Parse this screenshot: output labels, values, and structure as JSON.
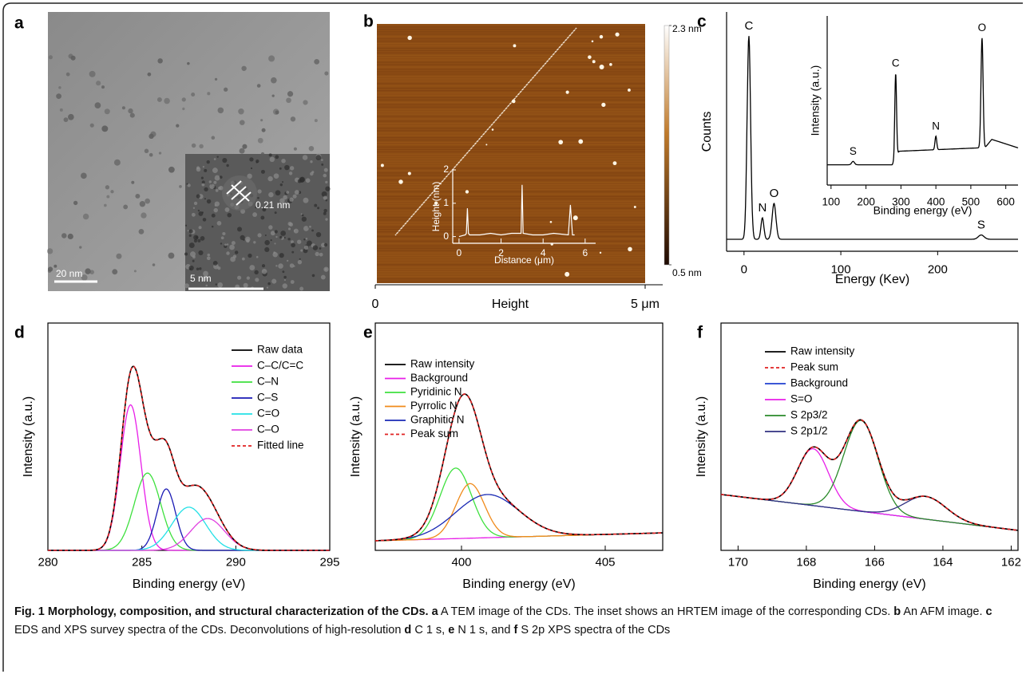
{
  "panels": {
    "a": {
      "label": "a",
      "scale_bar": "20 nm",
      "inset_scale_bar": "5 nm",
      "lattice_spacing": "0.21 nm"
    },
    "b": {
      "label": "b",
      "colorbar_lim": [
        0.5,
        2.3
      ],
      "colorbar_ticks": [
        {
          "value": 2.3,
          "label": "2.3 nm"
        },
        {
          "value": 0.5,
          "label": "0.5 nm"
        }
      ],
      "x_label": "Height",
      "xlim": [
        0,
        5
      ],
      "xticks": [
        0,
        {
          "value": 5,
          "label": "5 μm"
        }
      ],
      "inset": {
        "type": "line",
        "x_label": "Distance (μm)",
        "y_label": "Height (nm)",
        "color": "#ffffff",
        "xlim": [
          -0.3,
          6.5
        ],
        "xticks": [
          0,
          2,
          4,
          6
        ],
        "ylim": [
          -0.2,
          2
        ],
        "yticks": [
          0,
          1,
          2
        ],
        "x": [
          0,
          0.3,
          0.35,
          0.4,
          0.45,
          0.5,
          1,
          1.5,
          2,
          2.5,
          2.95,
          3.0,
          3.05,
          3.5,
          4,
          4.5,
          5.2,
          5.3,
          5.4,
          5.5
        ],
        "values": [
          0,
          0.05,
          0.1,
          0.85,
          0.1,
          0.05,
          0.05,
          0.1,
          0.05,
          0.1,
          0.1,
          1.55,
          0.1,
          0.05,
          0.05,
          0.1,
          0.05,
          0.95,
          0.05,
          0.05
        ]
      }
    },
    "c": {
      "label": "c",
      "type": "spectrum",
      "x_label": "Energy (Kev)",
      "y_label": "Counts",
      "color": "#000000",
      "xlim": [
        -18,
        283
      ],
      "xticks": [
        0,
        100,
        200
      ],
      "ylim": [
        0,
        100
      ],
      "background": {
        "x": [
          -18,
          283
        ],
        "values": [
          5,
          5
        ]
      },
      "peaks": [
        {
          "name": "C",
          "center": 5,
          "height": 85,
          "width": 1.8
        },
        {
          "name": "N",
          "center": 19,
          "height": 9,
          "width": 1.5
        },
        {
          "name": "O",
          "center": 31,
          "height": 15,
          "width": 2
        },
        {
          "name": "S",
          "center": 245,
          "height": 1.8,
          "width": 3
        }
      ],
      "inset": {
        "type": "spectrum",
        "x_label": "Binding energy (eV)",
        "y_label": "Intensity (a.u.)",
        "color": "#000000",
        "xlim": [
          89,
          635
        ],
        "xticks": [
          100,
          200,
          300,
          400,
          500,
          600
        ],
        "ylim": [
          0,
          100
        ],
        "background": {
          "x": [
            89,
            275,
            295,
            525,
            540,
            560,
            635
          ],
          "values": [
            12,
            12,
            20,
            22,
            22,
            27,
            22
          ]
        },
        "peaks": [
          {
            "name": "S",
            "center": 163,
            "height": 2,
            "width": 4
          },
          {
            "name": "C",
            "center": 285,
            "height": 50,
            "width": 2.5
          },
          {
            "name": "N",
            "center": 400,
            "height": 8,
            "width": 2.5
          },
          {
            "name": "O",
            "center": 532,
            "height": 65,
            "width": 3
          }
        ]
      }
    },
    "d": {
      "label": "d",
      "type": "spectrum",
      "x_label": "Binding energy (eV)",
      "y_label": "Intensity (a.u.)",
      "xlim": [
        280,
        295
      ],
      "xticks": [
        280,
        285,
        290,
        295
      ],
      "ylim": [
        0,
        100
      ],
      "series": [
        {
          "name": "Raw data",
          "color": "#000000"
        },
        {
          "name": "C–C/C=C",
          "color": "#e81ee8",
          "center": 284.4,
          "height": 64,
          "width": 0.55
        },
        {
          "name": "C–N",
          "color": "#3ee03e",
          "center": 285.3,
          "height": 34,
          "width": 0.7
        },
        {
          "name": "C–S",
          "color": "#1a1ab4",
          "center": 286.3,
          "height": 27,
          "width": 0.5
        },
        {
          "name": "C=O",
          "color": "#22e0e6",
          "center": 287.5,
          "height": 19,
          "width": 0.9
        },
        {
          "name": "C–O",
          "color": "#e040e0",
          "center": 288.5,
          "height": 14,
          "width": 0.9
        },
        {
          "name": "Fitted line",
          "color": "#e02020",
          "dash": true
        }
      ]
    },
    "e": {
      "label": "e",
      "type": "spectrum",
      "x_label": "Binding energy (eV)",
      "y_label": "Intensity (a.u.)",
      "xlim": [
        397,
        407
      ],
      "xticks": [
        400,
        405
      ],
      "ylim": [
        0,
        100
      ],
      "series": [
        {
          "name": "Raw intensity",
          "color": "#000000"
        },
        {
          "name": "Background",
          "color": "#e81ee8",
          "x": [
            397,
            407
          ],
          "values": [
            4.2,
            7.7
          ]
        },
        {
          "name": "Pyridinic N",
          "color": "#3ee03e",
          "center": 399.8,
          "height": 31,
          "width": 0.55
        },
        {
          "name": "Pyrrolic N",
          "color": "#f08a1a",
          "center": 400.3,
          "height": 24,
          "width": 0.5
        },
        {
          "name": "Graphitic N",
          "color": "#1a2ab4",
          "center": 400.9,
          "height": 19,
          "width": 1.1
        },
        {
          "name": "Peak sum",
          "color": "#e02020",
          "dash": true
        }
      ]
    },
    "f": {
      "label": "f",
      "type": "spectrum",
      "x_label": "Binding energy (eV)",
      "y_label": "Intensity (a.u.)",
      "xlim": [
        170.5,
        161.8
      ],
      "xticks": [
        170,
        168,
        166,
        164,
        162
      ],
      "ylim": [
        0,
        100
      ],
      "series": [
        {
          "name": "Raw intensity",
          "color": "#000000"
        },
        {
          "name": "Peak sum",
          "color": "#e02020",
          "dash": true
        },
        {
          "name": "Background",
          "color": "#2040d0",
          "x": [
            170.5,
            161.8
          ],
          "values": [
            24.6,
            8.8
          ]
        },
        {
          "name": "S=O",
          "color": "#e81ee8",
          "center": 167.8,
          "height": 25,
          "width": 0.45
        },
        {
          "name": "S 2p3/2",
          "color": "#2a8a2a",
          "center": 166.4,
          "height": 40,
          "width": 0.5
        },
        {
          "name": "S 2p1/2",
          "color": "#303080",
          "center": 164.5,
          "height": 10,
          "width": 0.6
        }
      ]
    }
  },
  "caption": {
    "title": "Fig. 1 Morphology, composition, and structural characterization of the CDs.",
    "segments": [
      {
        "label": "a",
        "text": "A TEM image of the CDs. The inset shows an HRTEM image of the corresponding CDs."
      },
      {
        "label": "b",
        "text": "An AFM image."
      },
      {
        "label": "c",
        "text": "EDS and XPS survey spectra of the CDs. Deconvolutions of high-resolution"
      },
      {
        "label": "d",
        "text": "C 1 s,"
      },
      {
        "label": "e",
        "text": "N 1 s, and"
      },
      {
        "label": "f",
        "text": "S 2p XPS spectra of the CDs"
      }
    ]
  }
}
